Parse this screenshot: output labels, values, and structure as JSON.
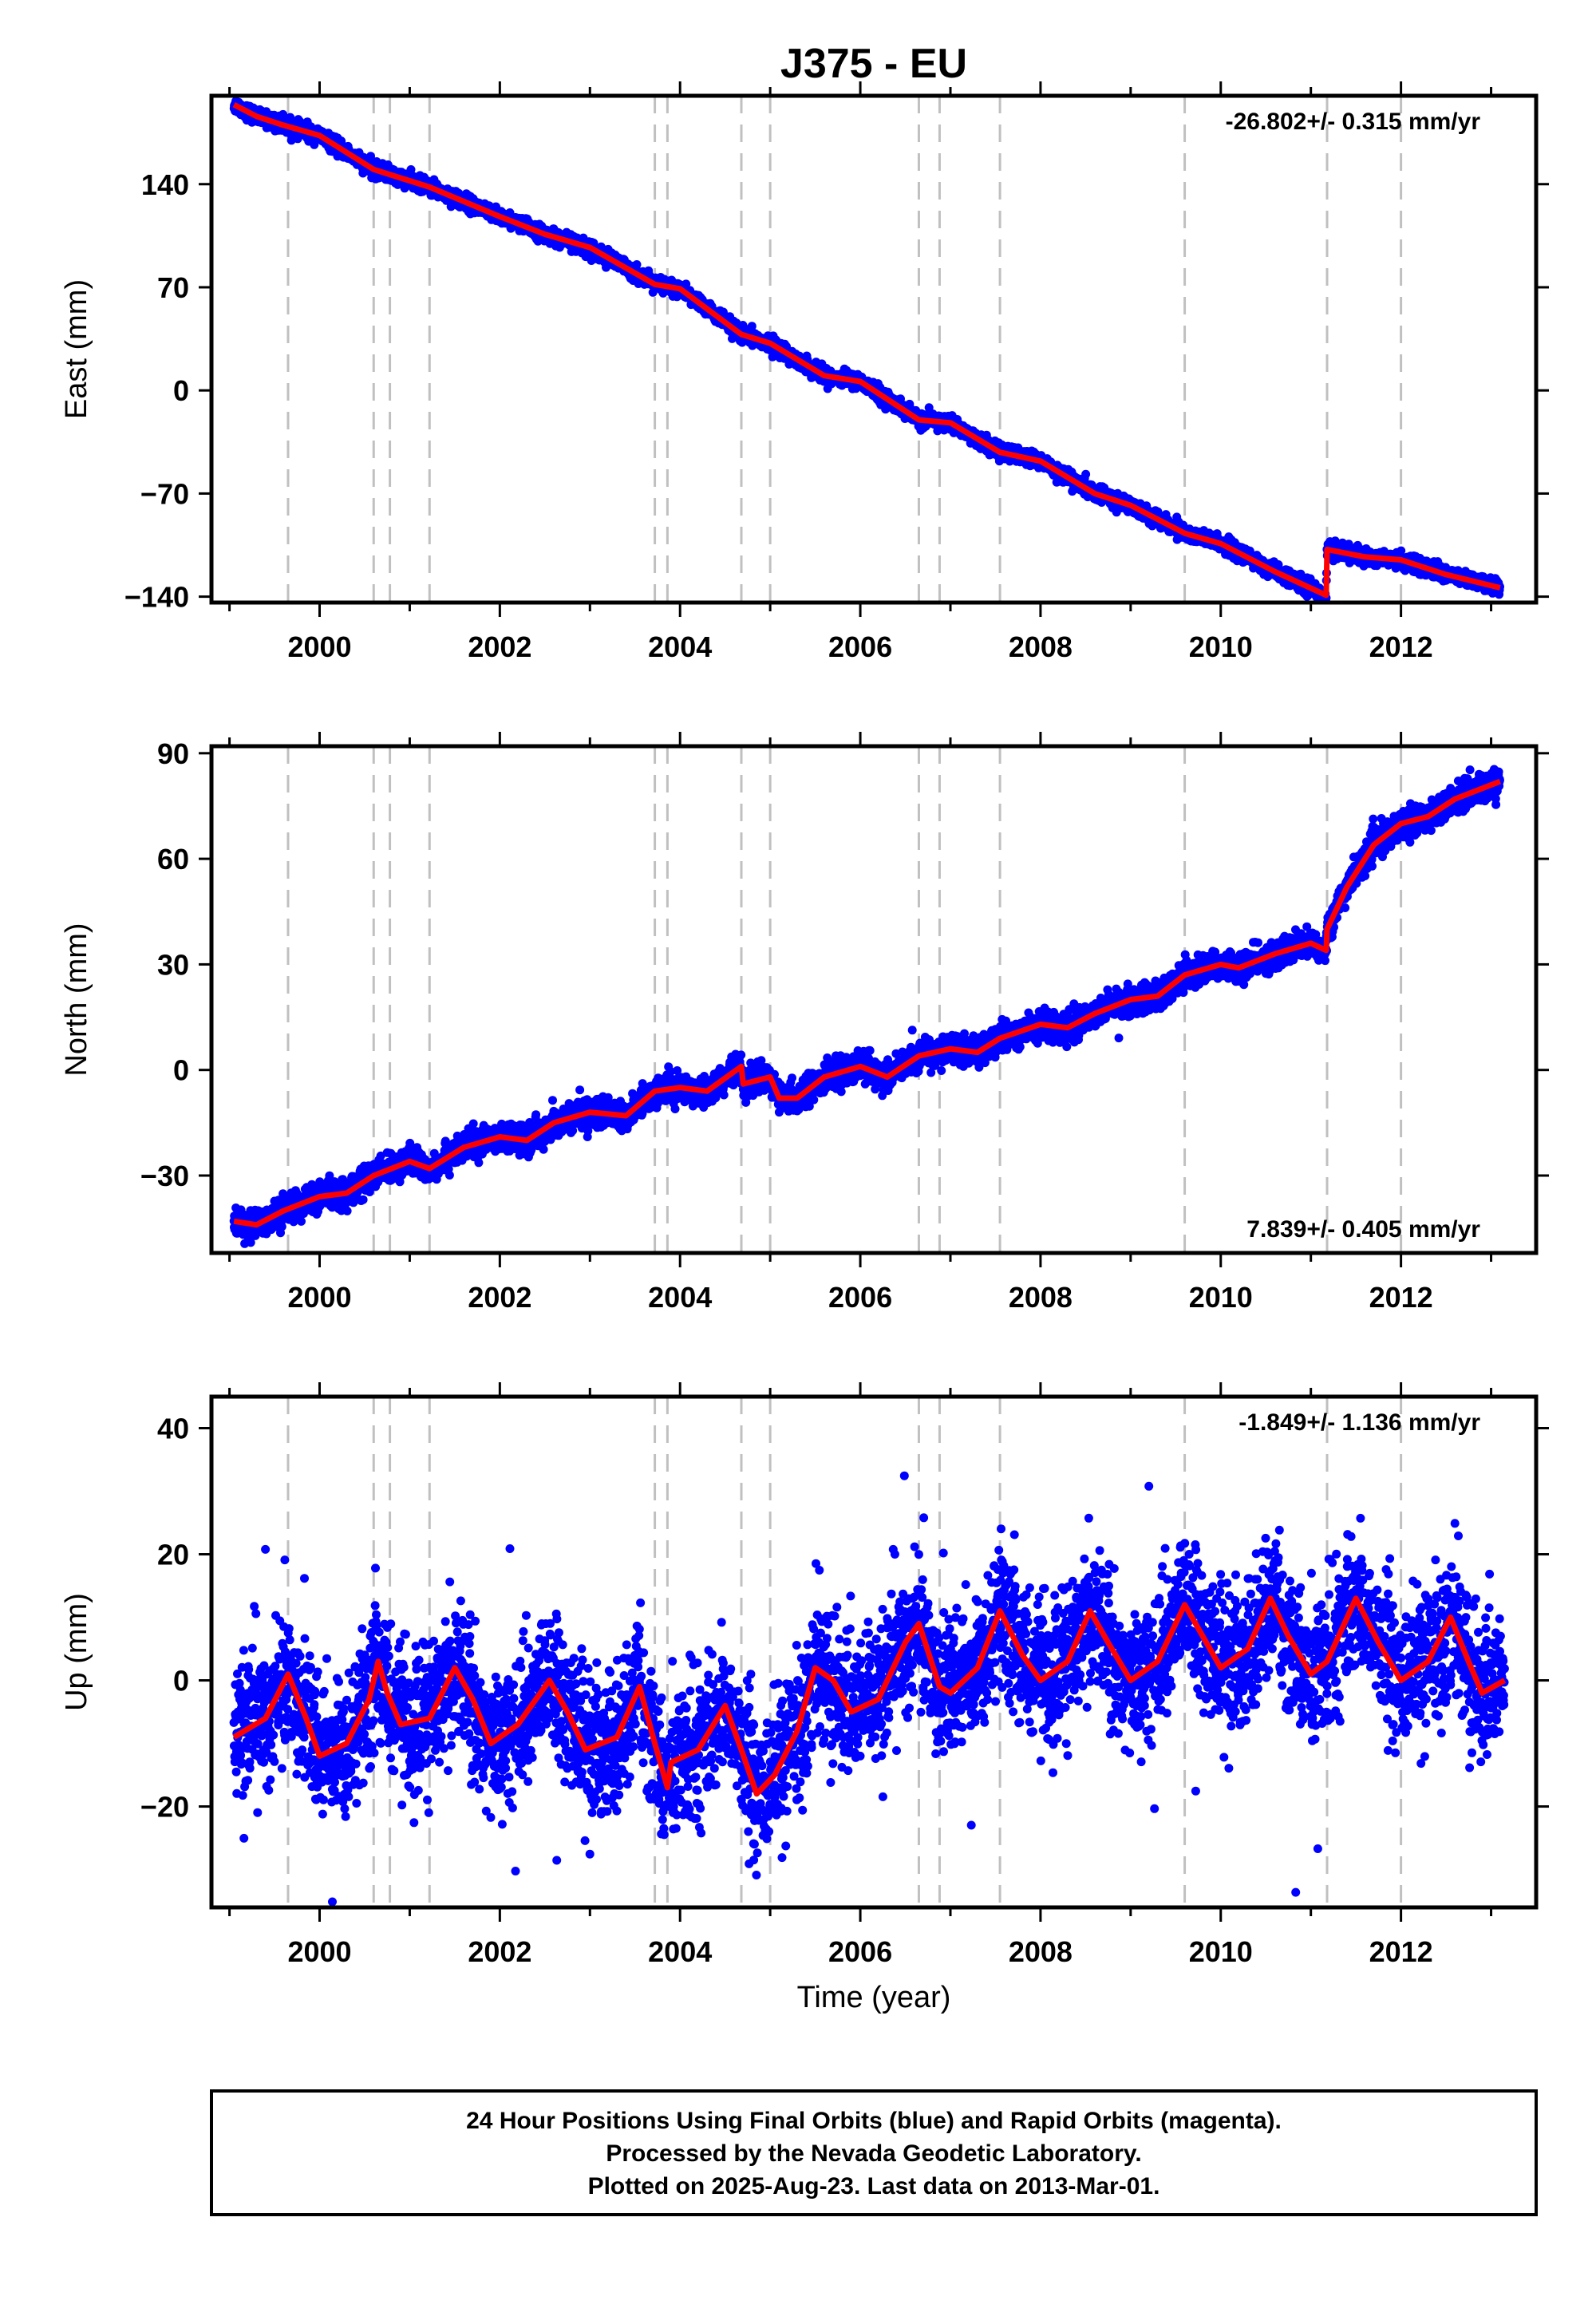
{
  "chart_data": {
    "title": "J375 - EU",
    "type": "scatter",
    "x_range": [
      1998.8,
      2013.5
    ],
    "x_ticks": [
      "2000",
      "2002",
      "2004",
      "2006",
      "2008",
      "2010",
      "2012"
    ],
    "x_label": "Time (year)",
    "event_lines": [
      1999.65,
      2000.6,
      2000.78,
      2001.22,
      2003.72,
      2003.86,
      2004.68,
      2005.0,
      2006.65,
      2006.88,
      2007.55,
      2009.6,
      2011.18,
      2012.0
    ],
    "colors": {
      "final_orbits": "#0000ff",
      "model_fit": "#ff0000",
      "event_line": "#c0c0c0",
      "rapid_orbits": "#ff00ff"
    },
    "panels": [
      {
        "id": "east",
        "ylabel": "East (mm)",
        "ylim": [
          -144,
          200
        ],
        "yticks": [
          "140",
          "70",
          "0",
          "−70",
          "−140"
        ],
        "ytick_values": [
          140,
          70,
          0,
          -70,
          -140
        ],
        "rate_text": "-26.802+/- 0.315 mm/yr",
        "rate_position": "top-right",
        "data_span": [
          1999.05,
          2013.1
        ],
        "fit": [
          [
            1999.05,
            194
          ],
          [
            1999.3,
            186
          ],
          [
            1999.6,
            180
          ],
          [
            2000.0,
            173
          ],
          [
            2000.6,
            150
          ],
          [
            2001.22,
            138
          ],
          [
            2002.0,
            118
          ],
          [
            2002.5,
            106
          ],
          [
            2003.0,
            97
          ],
          [
            2003.72,
            72
          ],
          [
            2004.0,
            69
          ],
          [
            2004.68,
            38
          ],
          [
            2005.0,
            32
          ],
          [
            2005.6,
            10
          ],
          [
            2006.0,
            6
          ],
          [
            2006.65,
            -20
          ],
          [
            2007.0,
            -22
          ],
          [
            2007.55,
            -42
          ],
          [
            2008.0,
            -48
          ],
          [
            2008.6,
            -70
          ],
          [
            2009.0,
            -78
          ],
          [
            2009.6,
            -97
          ],
          [
            2010.0,
            -104
          ],
          [
            2010.6,
            -123
          ],
          [
            2011.17,
            -139
          ],
          [
            2011.18,
            -108
          ],
          [
            2011.6,
            -113
          ],
          [
            2012.0,
            -115
          ],
          [
            2012.5,
            -125
          ],
          [
            2013.1,
            -134
          ]
        ],
        "scatter_noise": 2.5,
        "outlier_rate": 0.0
      },
      {
        "id": "north",
        "ylabel": "North (mm)",
        "ylim": [
          -52,
          92
        ],
        "yticks": [
          "90",
          "60",
          "30",
          "0",
          "−30"
        ],
        "ytick_values": [
          90,
          60,
          30,
          0,
          -30
        ],
        "rate_text": "7.839+/- 0.405 mm/yr",
        "rate_position": "bottom-right",
        "data_span": [
          1999.05,
          2013.1
        ],
        "fit": [
          [
            1999.05,
            -43
          ],
          [
            1999.3,
            -44
          ],
          [
            1999.6,
            -40
          ],
          [
            2000.0,
            -36
          ],
          [
            2000.3,
            -35
          ],
          [
            2000.6,
            -30
          ],
          [
            2001.0,
            -26
          ],
          [
            2001.22,
            -28
          ],
          [
            2001.6,
            -22
          ],
          [
            2002.0,
            -19
          ],
          [
            2002.3,
            -20
          ],
          [
            2002.6,
            -15
          ],
          [
            2003.0,
            -12
          ],
          [
            2003.4,
            -13
          ],
          [
            2003.72,
            -6
          ],
          [
            2004.0,
            -5
          ],
          [
            2004.3,
            -6
          ],
          [
            2004.68,
            1
          ],
          [
            2004.7,
            -4
          ],
          [
            2005.0,
            -2
          ],
          [
            2005.1,
            -8
          ],
          [
            2005.3,
            -8
          ],
          [
            2005.6,
            -2
          ],
          [
            2006.0,
            1
          ],
          [
            2006.3,
            -2
          ],
          [
            2006.65,
            4
          ],
          [
            2007.0,
            6
          ],
          [
            2007.3,
            5
          ],
          [
            2007.55,
            9
          ],
          [
            2008.0,
            13
          ],
          [
            2008.3,
            12
          ],
          [
            2008.6,
            16
          ],
          [
            2009.0,
            20
          ],
          [
            2009.3,
            21
          ],
          [
            2009.6,
            27
          ],
          [
            2010.0,
            30
          ],
          [
            2010.2,
            29
          ],
          [
            2010.6,
            33
          ],
          [
            2011.0,
            36
          ],
          [
            2011.17,
            34
          ],
          [
            2011.18,
            40
          ],
          [
            2011.4,
            52
          ],
          [
            2011.7,
            64
          ],
          [
            2012.0,
            70
          ],
          [
            2012.3,
            72
          ],
          [
            2012.6,
            77
          ],
          [
            2013.1,
            82
          ]
        ],
        "scatter_noise": 2.0,
        "outlier_rate": 0.0
      },
      {
        "id": "up",
        "ylabel": "Up (mm)",
        "ylim": [
          -36,
          45
        ],
        "yticks": [
          "40",
          "20",
          "0",
          "−20"
        ],
        "ytick_values": [
          40,
          20,
          0,
          -20
        ],
        "rate_text": "-1.849+/- 1.136 mm/yr",
        "rate_position": "top-right",
        "data_span": [
          1999.05,
          2013.15
        ],
        "fit": [
          [
            1999.05,
            -9
          ],
          [
            1999.4,
            -6
          ],
          [
            1999.65,
            1
          ],
          [
            1999.85,
            -6
          ],
          [
            2000.0,
            -12
          ],
          [
            2000.3,
            -10
          ],
          [
            2000.55,
            -3
          ],
          [
            2000.65,
            3
          ],
          [
            2000.75,
            -2
          ],
          [
            2000.9,
            -7
          ],
          [
            2001.22,
            -6
          ],
          [
            2001.5,
            2
          ],
          [
            2001.7,
            -3
          ],
          [
            2001.9,
            -10
          ],
          [
            2002.2,
            -7
          ],
          [
            2002.55,
            0
          ],
          [
            2002.75,
            -5
          ],
          [
            2002.95,
            -11
          ],
          [
            2003.3,
            -9
          ],
          [
            2003.55,
            -1
          ],
          [
            2003.72,
            -10
          ],
          [
            2003.86,
            -17
          ],
          [
            2003.9,
            -13
          ],
          [
            2004.2,
            -11
          ],
          [
            2004.5,
            -4
          ],
          [
            2004.68,
            -11
          ],
          [
            2004.85,
            -18
          ],
          [
            2005.05,
            -15
          ],
          [
            2005.3,
            -8
          ],
          [
            2005.5,
            2
          ],
          [
            2005.7,
            0
          ],
          [
            2005.9,
            -5
          ],
          [
            2006.2,
            -3
          ],
          [
            2006.5,
            6
          ],
          [
            2006.65,
            9
          ],
          [
            2006.88,
            -1
          ],
          [
            2007.0,
            -2
          ],
          [
            2007.3,
            2
          ],
          [
            2007.55,
            11
          ],
          [
            2007.8,
            4
          ],
          [
            2008.0,
            0
          ],
          [
            2008.3,
            3
          ],
          [
            2008.55,
            11
          ],
          [
            2008.75,
            6
          ],
          [
            2009.0,
            0
          ],
          [
            2009.3,
            3
          ],
          [
            2009.6,
            12
          ],
          [
            2009.8,
            7
          ],
          [
            2010.0,
            2
          ],
          [
            2010.3,
            5
          ],
          [
            2010.55,
            13
          ],
          [
            2010.75,
            7
          ],
          [
            2011.0,
            1
          ],
          [
            2011.18,
            3
          ],
          [
            2011.5,
            13
          ],
          [
            2011.75,
            6
          ],
          [
            2012.0,
            0
          ],
          [
            2012.3,
            3
          ],
          [
            2012.55,
            10
          ],
          [
            2012.75,
            3
          ],
          [
            2012.9,
            -2
          ],
          [
            2013.15,
            0
          ]
        ],
        "scatter_noise": 5.5,
        "outlier_rate": 0.02
      }
    ]
  },
  "footer": {
    "line1": "24 Hour Positions Using Final Orbits (blue) and Rapid Orbits (magenta).",
    "line2": "Processed by the Nevada Geodetic Laboratory.",
    "line3": "Plotted on 2025-Aug-23. Last data on 2013-Mar-01."
  }
}
